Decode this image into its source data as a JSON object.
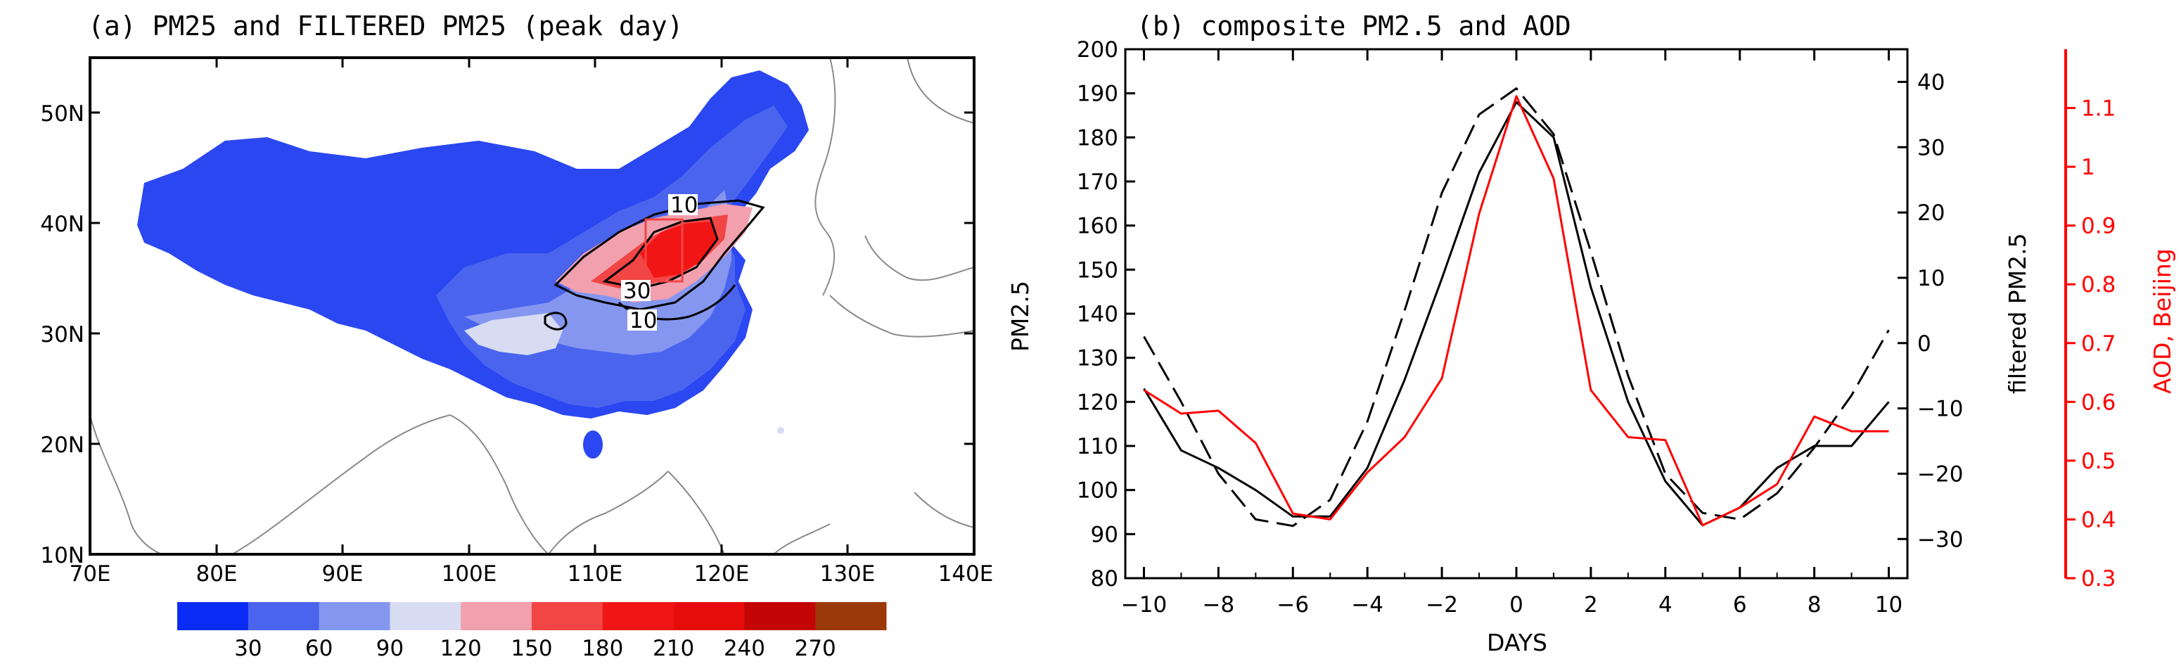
{
  "panel_a": {
    "title": "(a) PM25 and FILTERED PM25 (peak day)",
    "lat_labels": [
      "10N",
      "20N",
      "30N",
      "40N",
      "50N"
    ],
    "lon_labels": [
      "70E",
      "80E",
      "90E",
      "100E",
      "110E",
      "120E",
      "130E",
      "140E"
    ],
    "contour_labels": [
      "10",
      "30",
      "10"
    ],
    "colorbar": {
      "colors": [
        "#0a2cf5",
        "#4a64ee",
        "#8496ef",
        "#d7dcf3",
        "#f2a0ae",
        "#f24545",
        "#f21515",
        "#e60c0c",
        "#c40505",
        "#9b3a08"
      ],
      "labels": [
        "30",
        "60",
        "90",
        "120",
        "150",
        "180",
        "210",
        "240",
        "270"
      ]
    }
  },
  "chart_data": {
    "type": "line",
    "title": "(b) composite PM2.5 and AOD",
    "xlabel": "DAYS",
    "ylabel": "PM2.5",
    "y2label": "filtered PM2.5",
    "y3label": "AOD, Beijing",
    "x": [
      -10,
      -9,
      -8,
      -7,
      -6,
      -5,
      -4,
      -3,
      -2,
      -1,
      0,
      1,
      2,
      3,
      4,
      5,
      6,
      7,
      8,
      9,
      10
    ],
    "xlim": [
      -10.5,
      10.5
    ],
    "ylim": [
      80,
      200
    ],
    "y2lim": [
      -36,
      45
    ],
    "y3lim": [
      0.3,
      1.2
    ],
    "xticks": [
      -10,
      -8,
      -6,
      -4,
      -2,
      0,
      2,
      4,
      6,
      8,
      10
    ],
    "yticks": [
      80,
      90,
      100,
      110,
      120,
      130,
      140,
      150,
      160,
      170,
      180,
      190,
      200
    ],
    "y2ticks": [
      -30,
      -20,
      -10,
      0,
      10,
      20,
      30,
      40
    ],
    "y3ticks": [
      0.3,
      0.4,
      0.5,
      0.6,
      0.7,
      0.8,
      0.9,
      1,
      1.1
    ],
    "series": [
      {
        "name": "PM2.5 composite",
        "axis": "left",
        "style": "solid",
        "color": "#000000",
        "values": [
          123,
          109,
          105,
          100,
          94,
          94,
          105,
          125,
          148,
          172,
          188,
          180,
          146,
          120,
          102,
          92,
          96,
          105,
          110,
          110,
          120
        ]
      },
      {
        "name": "filtered PM2.5",
        "axis": "right",
        "style": "dashed",
        "color": "#000000",
        "values": [
          1,
          -9,
          -20,
          -27,
          -28,
          -24,
          -12,
          5,
          23,
          35,
          39,
          32,
          14,
          -5,
          -20,
          -26,
          -27,
          -23,
          -16,
          -8,
          2
        ]
      },
      {
        "name": "AOD Beijing",
        "axis": "far-right",
        "style": "solid",
        "color": "#ff0000",
        "values": [
          0.62,
          0.58,
          0.585,
          0.53,
          0.41,
          0.4,
          0.48,
          0.54,
          0.64,
          0.92,
          1.12,
          0.98,
          0.62,
          0.54,
          0.535,
          0.39,
          0.42,
          0.46,
          0.575,
          0.55,
          0.55
        ]
      }
    ]
  }
}
